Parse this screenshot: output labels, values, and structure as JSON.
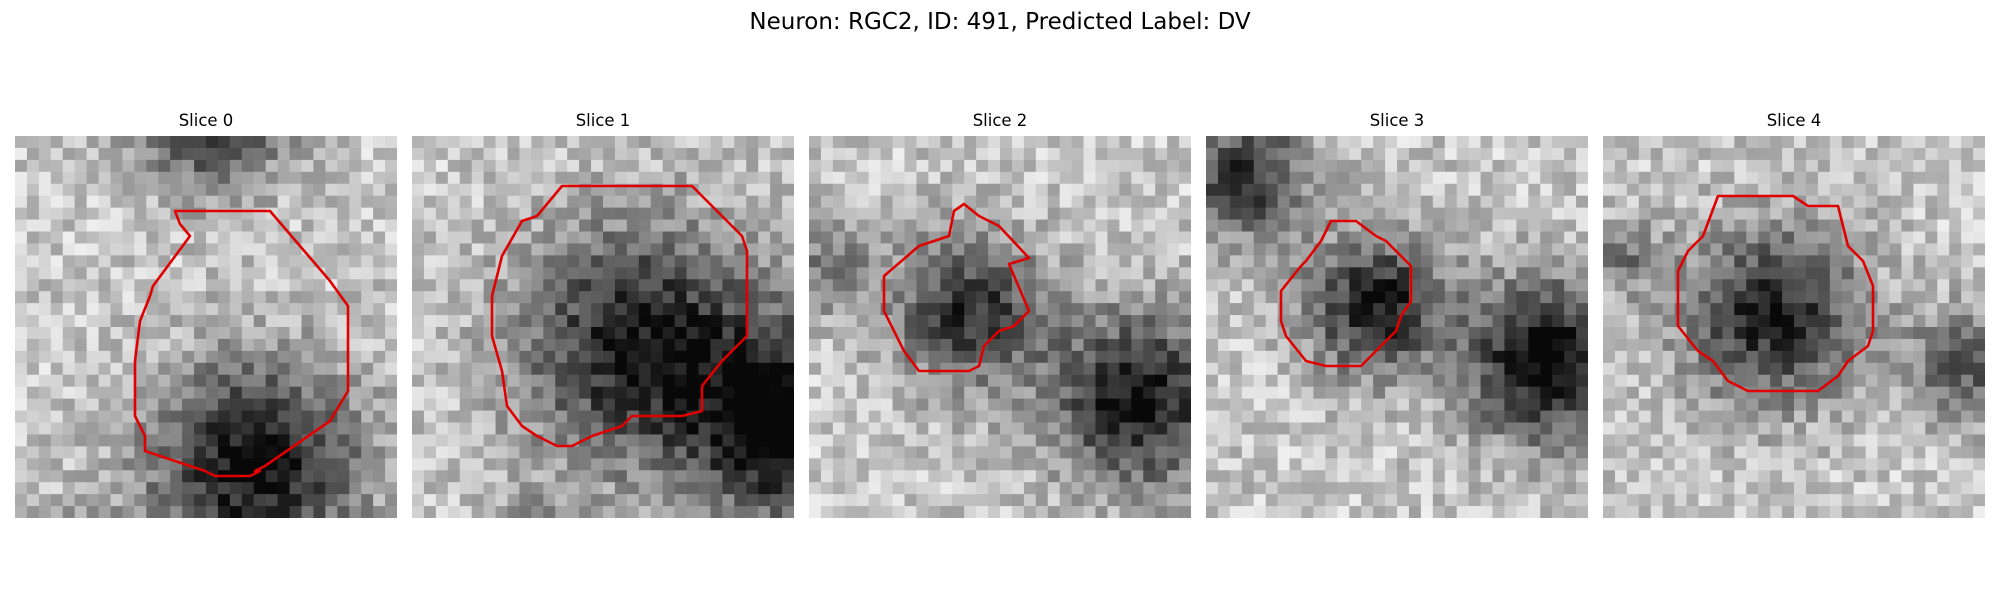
{
  "figure": {
    "title": "Neuron: RGC2, ID: 491, Predicted Label: DV"
  },
  "panels": [
    {
      "title": "Slice 0",
      "contour_color": "#e00000",
      "seed": 11
    },
    {
      "title": "Slice 1",
      "contour_color": "#e00000",
      "seed": 23
    },
    {
      "title": "Slice 2",
      "contour_color": "#e00000",
      "seed": 37
    },
    {
      "title": "Slice 3",
      "contour_color": "#e00000",
      "seed": 41
    },
    {
      "title": "Slice 4",
      "contour_color": "#e00000",
      "seed": 53
    }
  ]
}
